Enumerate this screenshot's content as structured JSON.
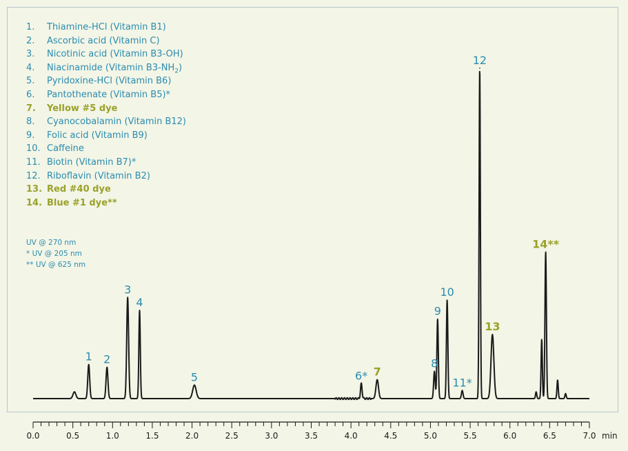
{
  "chart_data": {
    "type": "line",
    "title": "",
    "xlabel": "min",
    "ylabel": "",
    "xlim": [
      0.0,
      7.0
    ],
    "ylim": [
      0,
      100
    ],
    "grid": false,
    "legend_placement": "top-left",
    "xticks": [
      "0.0",
      "0.5",
      "1.0",
      "1.5",
      "2.0",
      "2.5",
      "3.0",
      "3.5",
      "4.0",
      "4.5",
      "5.0",
      "5.5",
      "6.0",
      "6.5",
      "7.0"
    ],
    "baseline": 2,
    "colors": {
      "trace": "#1a1a1a",
      "vitamin": "#2a8cb0",
      "dye": "#9aa12a",
      "border": "#b7c6cc",
      "background": "#f3f5e6"
    },
    "peaks": [
      {
        "label": "",
        "t": 0.52,
        "h": 2,
        "w": 0.018,
        "kind": "minor"
      },
      {
        "label": "1",
        "t": 0.7,
        "h": 10.1,
        "w": 0.012,
        "kind": "vitamin"
      },
      {
        "label": "2",
        "t": 0.93,
        "h": 9.3,
        "w": 0.012,
        "kind": "vitamin"
      },
      {
        "label": "3",
        "t": 1.19,
        "h": 30.0,
        "w": 0.012,
        "kind": "vitamin"
      },
      {
        "label": "4",
        "t": 1.34,
        "h": 26.2,
        "w": 0.009,
        "kind": "vitamin"
      },
      {
        "label": "5",
        "t": 2.03,
        "h": 4.0,
        "w": 0.022,
        "kind": "vitamin"
      },
      {
        "label": "6*",
        "t": 4.13,
        "h": 4.4,
        "w": 0.01,
        "kind": "vitamin"
      },
      {
        "label": "7",
        "t": 4.33,
        "h": 5.6,
        "w": 0.016,
        "kind": "dye"
      },
      {
        "label": "8",
        "t": 5.05,
        "h": 8.1,
        "w": 0.01,
        "kind": "vitamin"
      },
      {
        "label": "9",
        "t": 5.09,
        "h": 23.6,
        "w": 0.009,
        "kind": "vitamin"
      },
      {
        "label": "10",
        "t": 5.21,
        "h": 29.2,
        "w": 0.009,
        "kind": "vitamin"
      },
      {
        "label": "11*",
        "t": 5.4,
        "h": 2.4,
        "w": 0.01,
        "kind": "vitamin"
      },
      {
        "label": "12",
        "t": 5.62,
        "h": 98.0,
        "w": 0.008,
        "kind": "vitamin"
      },
      {
        "label": "13",
        "t": 5.78,
        "h": 19.0,
        "w": 0.018,
        "kind": "dye"
      },
      {
        "label": "",
        "t": 6.33,
        "h": 2.0,
        "w": 0.008,
        "kind": "minor"
      },
      {
        "label": "",
        "t": 6.4,
        "h": 17.5,
        "w": 0.008,
        "kind": "minor"
      },
      {
        "label": "14**",
        "t": 6.45,
        "h": 43.5,
        "w": 0.009,
        "kind": "dye"
      },
      {
        "label": "",
        "t": 6.6,
        "h": 5.5,
        "w": 0.008,
        "kind": "minor"
      },
      {
        "label": "",
        "t": 6.7,
        "h": 1.5,
        "w": 0.008,
        "kind": "minor"
      }
    ],
    "legend": [
      {
        "num": "1.",
        "text": "Thiamine-HCl (Vitamin B1)",
        "kind": "vitamin"
      },
      {
        "num": "2.",
        "text": "Ascorbic acid (Vitamin C)",
        "kind": "vitamin"
      },
      {
        "num": "3.",
        "text": "Nicotinic acid (Vitamin B3-OH)",
        "kind": "vitamin"
      },
      {
        "num": "4.",
        "text": "Niacinamide (Vitamin B3-NH",
        "sub": "2",
        "tail": ")",
        "kind": "vitamin"
      },
      {
        "num": "5.",
        "text": "Pyridoxine-HCl (Vitamin B6)",
        "kind": "vitamin"
      },
      {
        "num": "6.",
        "text": "Pantothenate (Vitamin B5)*",
        "kind": "vitamin"
      },
      {
        "num": "7.",
        "text": "Yellow #5 dye",
        "kind": "dye"
      },
      {
        "num": "8.",
        "text": "Cyanocobalamin (Vitamin B12)",
        "kind": "vitamin"
      },
      {
        "num": "9.",
        "text": "Folic acid (Vitamin B9)",
        "kind": "vitamin"
      },
      {
        "num": "10.",
        "text": "Caffeine",
        "kind": "vitamin"
      },
      {
        "num": "11.",
        "text": "Biotin (Vitamin B7)*",
        "kind": "vitamin"
      },
      {
        "num": "12.",
        "text": "Riboflavin (Vitamin B2)",
        "kind": "vitamin"
      },
      {
        "num": "13.",
        "text": "Red #40 dye",
        "kind": "dye"
      },
      {
        "num": "14.",
        "text": "Blue #1 dye**",
        "kind": "dye"
      }
    ],
    "notes": [
      "UV @ 270 nm",
      "* UV @ 205 nm",
      "** UV @ 625 nm"
    ]
  }
}
